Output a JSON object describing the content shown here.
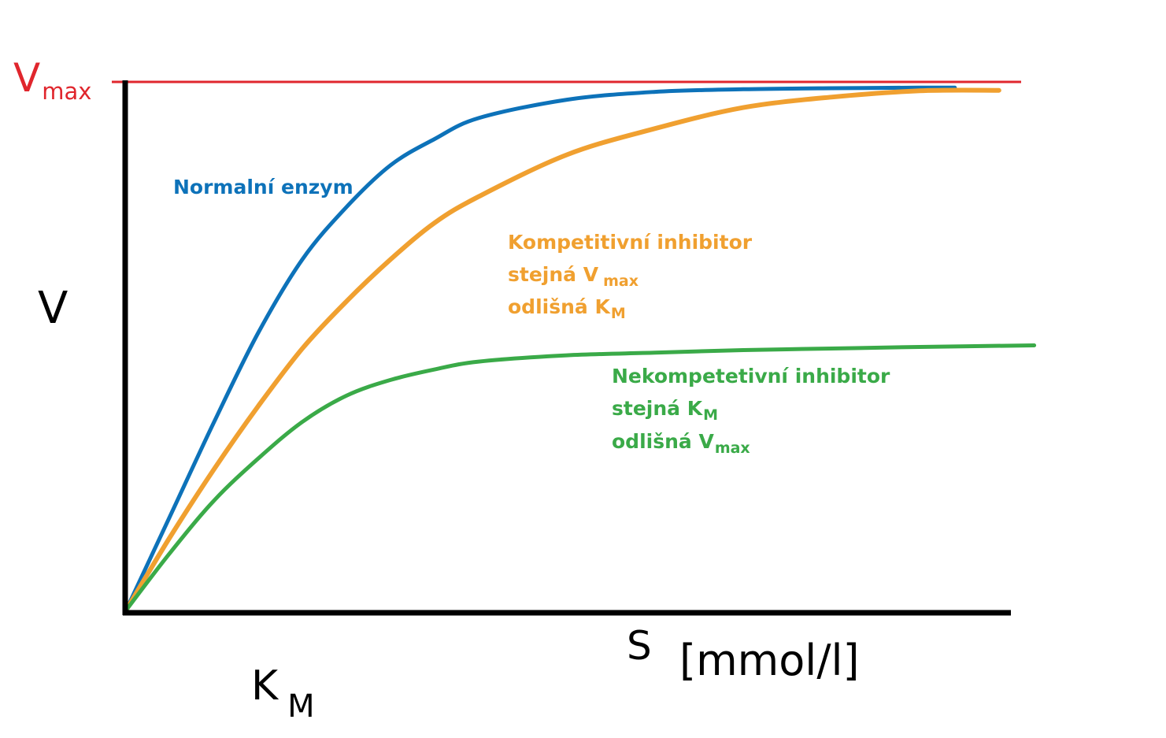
{
  "chart_data": {
    "type": "line",
    "x_label": "S",
    "x_unit": "[mmol/l]",
    "y_label": "V",
    "vmax_label": {
      "main": "V",
      "sub": "max"
    },
    "km_label": {
      "main": "K",
      "sub": "M"
    },
    "grid": false,
    "vmax": 1.0,
    "x_range": [
      0,
      1
    ],
    "y_range": [
      0,
      1
    ],
    "series": [
      {
        "key": "normal",
        "name": "Normalní enzym",
        "color": "#0d72b9",
        "x": [
          0,
          0.05,
          0.1,
          0.15,
          0.2,
          0.25,
          0.3,
          0.35,
          0.4,
          0.5,
          0.6,
          0.7,
          0.8,
          0.9,
          0.94
        ],
        "y": [
          0,
          0.18,
          0.36,
          0.53,
          0.67,
          0.77,
          0.85,
          0.9,
          0.94,
          0.975,
          0.99,
          0.995,
          0.997,
          0.998,
          0.998
        ]
      },
      {
        "key": "competitive",
        "name": "Kompetitivní inhibitor",
        "color": "#f0a030",
        "x": [
          0,
          0.05,
          0.1,
          0.15,
          0.2,
          0.25,
          0.3,
          0.35,
          0.4,
          0.5,
          0.6,
          0.7,
          0.8,
          0.9,
          0.99
        ],
        "y": [
          0,
          0.14,
          0.27,
          0.39,
          0.5,
          0.59,
          0.67,
          0.74,
          0.79,
          0.87,
          0.92,
          0.96,
          0.98,
          0.992,
          0.993
        ]
      },
      {
        "key": "noncompetitive",
        "name": "Nekompetetivní inhibitor",
        "color": "#3aaa48",
        "x": [
          0,
          0.05,
          0.1,
          0.15,
          0.2,
          0.25,
          0.3,
          0.35,
          0.4,
          0.5,
          0.6,
          0.7,
          0.8,
          0.9,
          1.03
        ],
        "y": [
          0,
          0.11,
          0.21,
          0.29,
          0.36,
          0.41,
          0.44,
          0.46,
          0.475,
          0.487,
          0.492,
          0.497,
          0.5,
          0.503,
          0.506
        ]
      }
    ],
    "annotations": {
      "normal": {
        "line1": "Normalní enzym"
      },
      "competitive": {
        "line1": "Kompetitivní inhibitor",
        "line2": "stejná V",
        "line2_sub": "max",
        "line3": "odlišná K",
        "line3_sub": "M"
      },
      "noncompetitive": {
        "line1": "Nekompetetivní inhibitor",
        "line2": "stejná K",
        "line2_sub": "M",
        "line3": "odlišná V",
        "line3_sub": "max"
      }
    },
    "colors": {
      "vmax_line": "#e0262d",
      "axes": "#000000"
    }
  }
}
